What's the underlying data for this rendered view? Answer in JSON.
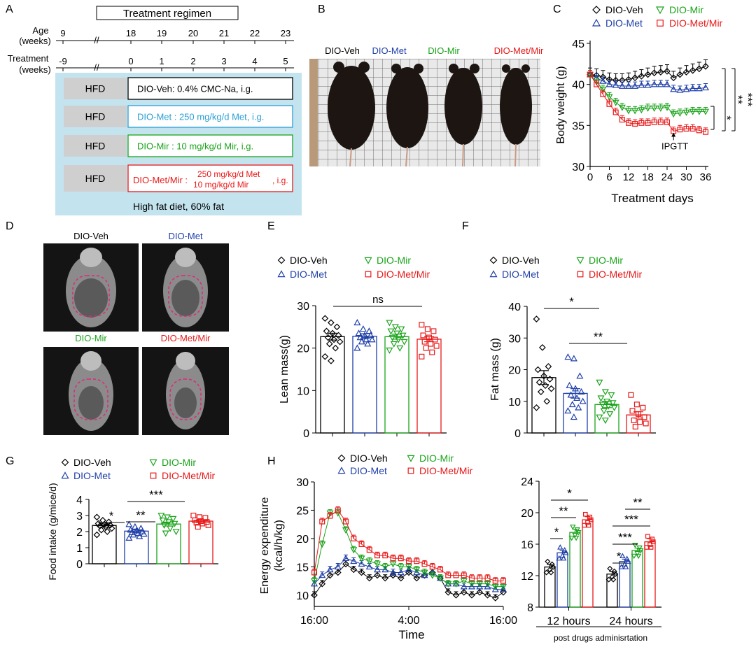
{
  "colors": {
    "veh": "#000000",
    "met": "#1f3fa8",
    "mir": "#1aa31a",
    "metmir": "#e81818",
    "regimen_bg": "#c3e4ef",
    "hfd_box": "#cfcfcf"
  },
  "groups": {
    "veh": "DIO-Veh",
    "met": "DIO-Met",
    "mir": "DIO-Mir",
    "metmir": "DIO-Met/Mir"
  },
  "panel_letters": [
    "A",
    "B",
    "C",
    "D",
    "E",
    "F",
    "G",
    "H"
  ],
  "panelA": {
    "title": "Treatment regimen",
    "age_label_1": "Age",
    "age_label_2": "(weeks)",
    "treat_label_1": "Treatment",
    "treat_label_2": "(weeks)",
    "age_ticks": [
      "9",
      "18",
      "19",
      "20",
      "21",
      "22",
      "23"
    ],
    "treat_ticks": [
      "-9",
      "0",
      "1",
      "2",
      "3",
      "4",
      "5"
    ],
    "break_mark": "//",
    "hfd": "HFD",
    "veh_text": "DIO-Veh: 0.4% CMC-Na, i.g.",
    "met_text": "DIO-Met : 250 mg/kg/d Met, i.g.",
    "mir_text": "DIO-Mir : 10 mg/kg/d Mir, i.g.",
    "metmir_text_a": "DIO-Met/Mir :",
    "metmir_text_b": "250 mg/kg/d Met",
    "metmir_text_c": "10  mg/kg/d Mir",
    "metmir_text_d": ", i.g.",
    "footer": "High fat diet, 60% fat"
  },
  "panelC": {
    "ylabel": "Body weight (g)",
    "xlabel": "Treatment days",
    "annotation": "IPGTT",
    "sig": [
      "*",
      "**",
      "***"
    ]
  },
  "panelE": {
    "ylabel": "Lean mass(g)",
    "sig": "ns"
  },
  "panelF": {
    "ylabel": "Fat mass (g)",
    "sig": [
      "*",
      "**"
    ]
  },
  "panelG": {
    "ylabel": "Food intake (g/mice/d)",
    "sig": [
      "*",
      "**",
      "***"
    ]
  },
  "panelH": {
    "ylabel_1": "Energy expenditure",
    "ylabel_2": "(kcal/h/kg)",
    "xlabel": "Time",
    "bar_caption": "post drugs adminisrtation",
    "sig_12h": [
      "*",
      "**",
      "*"
    ],
    "sig_24h": [
      "*",
      "***",
      "**"
    ]
  },
  "chart_data": [
    {
      "id": "C",
      "type": "line",
      "xlabel": "Treatment days",
      "ylabel": "Body weight (g)",
      "xlim": [
        0,
        36
      ],
      "ylim": [
        30,
        45
      ],
      "xticks": [
        0,
        6,
        12,
        18,
        24,
        30,
        36
      ],
      "yticks": [
        30,
        35,
        40,
        45
      ],
      "x": [
        0,
        2,
        4,
        6,
        8,
        10,
        12,
        14,
        16,
        18,
        20,
        22,
        24,
        26,
        28,
        30,
        32,
        34,
        36
      ],
      "series": [
        {
          "name": "DIO-Veh",
          "values": [
            41.2,
            41.1,
            40.9,
            40.6,
            40.5,
            40.5,
            40.6,
            40.8,
            41.0,
            41.2,
            41.4,
            41.5,
            41.6,
            40.8,
            41.2,
            41.5,
            41.7,
            41.9,
            42.2
          ]
        },
        {
          "name": "DIO-Met",
          "values": [
            41.2,
            40.8,
            40.4,
            40.0,
            39.9,
            39.8,
            39.8,
            39.8,
            39.9,
            39.9,
            40.0,
            40.0,
            40.0,
            39.4,
            39.3,
            39.4,
            39.5,
            39.5,
            39.6
          ]
        },
        {
          "name": "DIO-Mir",
          "values": [
            41.2,
            40.3,
            39.4,
            38.5,
            37.8,
            37.2,
            36.8,
            36.8,
            36.9,
            37.1,
            37.1,
            37.1,
            37.2,
            36.4,
            36.5,
            36.6,
            36.7,
            36.7,
            36.7
          ]
        },
        {
          "name": "DIO-Met/Mir",
          "values": [
            41.2,
            40.0,
            38.8,
            37.6,
            36.6,
            35.7,
            35.3,
            35.2,
            35.3,
            35.3,
            35.4,
            35.4,
            35.4,
            34.3,
            34.5,
            34.6,
            34.6,
            34.4,
            34.2
          ]
        }
      ],
      "annotation": "IPGTT",
      "annotation_x": 26
    },
    {
      "id": "E",
      "type": "bar",
      "ylabel": "Lean mass(g)",
      "ylim": [
        0,
        30
      ],
      "yticks": [
        0,
        10,
        20,
        30
      ],
      "categories": [
        "DIO-Veh",
        "DIO-Met",
        "DIO-Mir",
        "DIO-Met/Mir"
      ],
      "values": [
        22.7,
        22.8,
        22.7,
        22.1
      ],
      "sem": [
        0.8,
        0.6,
        0.6,
        0.6
      ],
      "points": [
        [
          27,
          26,
          25,
          24,
          23.5,
          23,
          22.5,
          22,
          21.5,
          21,
          20,
          18,
          17
        ],
        [
          26,
          24.5,
          24,
          23.5,
          23,
          23,
          22.5,
          22,
          22,
          21.5,
          21,
          20
        ],
        [
          26,
          25,
          24.5,
          24,
          23.5,
          23,
          22.5,
          22,
          21.5,
          21,
          20,
          19.5
        ],
        [
          25.5,
          24.5,
          24,
          23,
          22.5,
          22,
          21.5,
          21,
          20.5,
          20,
          19,
          18
        ]
      ]
    },
    {
      "id": "F",
      "type": "bar",
      "ylabel": "Fat mass (g)",
      "ylim": [
        0,
        40
      ],
      "yticks": [
        0,
        10,
        20,
        30,
        40
      ],
      "categories": [
        "DIO-Veh",
        "DIO-Met",
        "DIO-Mir",
        "DIO-Met/Mir"
      ],
      "values": [
        17.5,
        12.5,
        9.0,
        5.7
      ],
      "sem": [
        2.2,
        1.5,
        1.0,
        1.0
      ],
      "points": [
        [
          36,
          27,
          21,
          20,
          18,
          17,
          16,
          15,
          14,
          13,
          10,
          8
        ],
        [
          24,
          23.5,
          18,
          15,
          14,
          13,
          12,
          11,
          10,
          9,
          8,
          7,
          5
        ],
        [
          16,
          13,
          12,
          11,
          10,
          9.5,
          9,
          8.5,
          8,
          7,
          6,
          5,
          4
        ],
        [
          12,
          9,
          8,
          7,
          6,
          5,
          4,
          3.5,
          3,
          2
        ]
      ]
    },
    {
      "id": "G",
      "type": "bar",
      "ylabel": "Food intake (g/mice/d)",
      "ylim": [
        0,
        4
      ],
      "yticks": [
        0,
        1,
        2,
        3,
        4
      ],
      "categories": [
        "DIO-Veh",
        "DIO-Met",
        "DIO-Mir",
        "DIO-Met/Mir"
      ],
      "values": [
        2.38,
        2.03,
        2.47,
        2.65
      ],
      "sem": [
        0.1,
        0.08,
        0.12,
        0.08
      ],
      "points": [
        [
          2.9,
          2.7,
          2.6,
          2.5,
          2.45,
          2.4,
          2.35,
          2.3,
          2.2,
          2.1,
          2.0,
          1.8
        ],
        [
          2.45,
          2.3,
          2.2,
          2.1,
          2.05,
          2.0,
          1.95,
          1.9,
          1.85,
          1.8,
          1.7,
          1.6
        ],
        [
          3.0,
          2.9,
          2.8,
          2.7,
          2.6,
          2.5,
          2.4,
          2.2,
          2.0,
          1.9
        ],
        [
          3.0,
          2.9,
          2.85,
          2.7,
          2.65,
          2.6,
          2.55,
          2.5,
          2.4,
          2.3
        ]
      ]
    },
    {
      "id": "H-time",
      "type": "line",
      "xlabel": "Time",
      "ylabel": "Energy expenditure (kcal/h/kg)",
      "ylim": [
        8,
        30
      ],
      "yticks": [
        10,
        15,
        20,
        25,
        30
      ],
      "xticks": [
        "16:00",
        "4:00",
        "16:00"
      ],
      "x": [
        0,
        1,
        2,
        3,
        4,
        5,
        6,
        7,
        8,
        9,
        10,
        11,
        12,
        13,
        14,
        15,
        16,
        17,
        18,
        19,
        20,
        21,
        22,
        23,
        24
      ],
      "series": [
        {
          "name": "DIO-Veh",
          "values": [
            10.0,
            12.0,
            13.5,
            14.0,
            15.5,
            14.5,
            14.0,
            13.0,
            13.5,
            13.0,
            13.5,
            13.0,
            14.0,
            13.0,
            13.5,
            14.0,
            13.0,
            10.5,
            10.0,
            10.5,
            10.0,
            10.5,
            10.0,
            9.5,
            10.5
          ]
        },
        {
          "name": "DIO-Met",
          "values": [
            12.0,
            13.5,
            14.5,
            15.0,
            16.5,
            16.0,
            15.5,
            15.0,
            14.5,
            14.5,
            14.0,
            14.0,
            14.5,
            14.0,
            13.5,
            14.0,
            13.0,
            12.0,
            12.0,
            11.5,
            11.5,
            11.5,
            11.5,
            11.0,
            11.0
          ]
        },
        {
          "name": "DIO-Mir",
          "values": [
            12.5,
            19.0,
            24.5,
            24.5,
            21.5,
            18.0,
            16.5,
            16.0,
            15.5,
            15.0,
            15.5,
            15.0,
            15.0,
            14.5,
            14.0,
            13.5,
            13.0,
            12.0,
            12.0,
            12.5,
            12.0,
            12.0,
            12.0,
            11.5,
            11.5
          ]
        },
        {
          "name": "DIO-Met/Mir",
          "values": [
            14.0,
            23.0,
            24.0,
            25.0,
            23.0,
            20.0,
            19.0,
            18.0,
            17.0,
            17.0,
            16.5,
            16.5,
            16.0,
            16.0,
            15.5,
            15.0,
            14.5,
            13.5,
            13.5,
            13.5,
            13.0,
            13.0,
            13.0,
            12.5,
            12.5
          ]
        }
      ]
    },
    {
      "id": "H-bar",
      "type": "bar",
      "ylim": [
        8,
        24
      ],
      "yticks": [
        8,
        12,
        16,
        20,
        24
      ],
      "categories": [
        "12 hours",
        "24 hours"
      ],
      "series": [
        {
          "name": "DIO-Veh",
          "values": [
            13.1,
            12.2
          ],
          "sem": [
            0.3,
            0.3
          ]
        },
        {
          "name": "DIO-Met",
          "values": [
            14.9,
            13.8
          ],
          "sem": [
            0.3,
            0.3
          ]
        },
        {
          "name": "DIO-Mir",
          "values": [
            17.5,
            15.2
          ],
          "sem": [
            0.4,
            0.3
          ]
        },
        {
          "name": "DIO-Met/Mir",
          "values": [
            19.1,
            16.3
          ],
          "sem": [
            0.4,
            0.4
          ]
        }
      ]
    }
  ]
}
